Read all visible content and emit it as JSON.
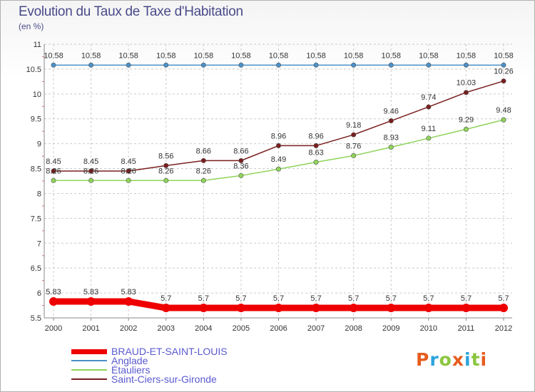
{
  "title": "Evolution du Taux de Taxe d'Habitation",
  "subtitle": "(en %)",
  "logo": {
    "text": "Proxiti",
    "colors": [
      "#e65c1e",
      "#2ca3dc",
      "#8bc63f",
      "#e65c1e",
      "#2ca3dc",
      "#8bc63f",
      "#e65c1e"
    ]
  },
  "chart_data": {
    "type": "line",
    "title": "Evolution du Taux de Taxe d'Habitation",
    "ylabel": "(en %)",
    "xlabel": "",
    "x": [
      "2000",
      "2001",
      "2002",
      "2003",
      "2004",
      "2005",
      "2006",
      "2007",
      "2008",
      "2009",
      "2010",
      "2011",
      "2012"
    ],
    "ylim": [
      5.5,
      11
    ],
    "yticks": [
      "5.5",
      "6",
      "6.5",
      "7",
      "7.5",
      "8",
      "8.5",
      "9",
      "9.5",
      "10",
      "10.5",
      "11"
    ],
    "grid": "horizontal dashed",
    "legend_position": "bottom-left",
    "series": [
      {
        "name": "BRAUD-ET-SAINT-LOUIS",
        "color": "#ee0000",
        "values": [
          5.83,
          5.83,
          5.83,
          5.7,
          5.7,
          5.7,
          5.7,
          5.7,
          5.7,
          5.7,
          5.7,
          5.7,
          5.7
        ],
        "labels": [
          "5.83",
          "5.83",
          "5.83",
          "5.7",
          "5.7",
          "5.7",
          "5.7",
          "5.7",
          "5.7",
          "5.7",
          "5.7",
          "5.7",
          "5.7"
        ]
      },
      {
        "name": "Anglade",
        "color": "#4a90c8",
        "values": [
          10.58,
          10.58,
          10.58,
          10.58,
          10.58,
          10.58,
          10.58,
          10.58,
          10.58,
          10.58,
          10.58,
          10.58,
          10.58
        ],
        "labels": [
          "10.58",
          "10.58",
          "10.58",
          "10.58",
          "10.58",
          "10.58",
          "10.58",
          "10.58",
          "10.58",
          "10.58",
          "10.58",
          "10.58",
          "10.58"
        ]
      },
      {
        "name": "Étauliers",
        "color": "#8fd45a",
        "values": [
          8.26,
          8.26,
          8.26,
          8.26,
          8.26,
          8.36,
          8.49,
          8.63,
          8.76,
          8.93,
          9.11,
          9.29,
          9.48
        ],
        "labels": [
          "8.26",
          "8.26",
          "8.26",
          "8.26",
          "8.26",
          "8.36",
          "8.49",
          "8.63",
          "8.76",
          "8.93",
          "9.11",
          "9.29",
          "9.48"
        ]
      },
      {
        "name": "Saint-Ciers-sur-Gironde",
        "color": "#7a1e1e",
        "values": [
          8.45,
          8.45,
          8.45,
          8.56,
          8.66,
          8.66,
          8.96,
          8.96,
          9.18,
          9.46,
          9.74,
          10.03,
          10.26
        ],
        "labels": [
          "8.45",
          "8.45",
          "8.45",
          "8.56",
          "8.66",
          "8.66",
          "8.96",
          "8.96",
          "9.18",
          "9.46",
          "9.74",
          "10.03",
          "10.26"
        ]
      }
    ]
  }
}
